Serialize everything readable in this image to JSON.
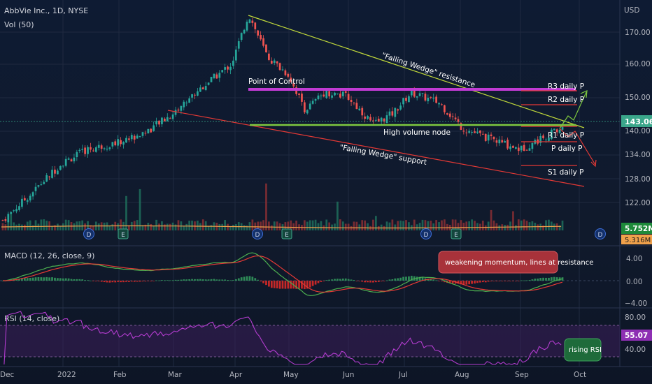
{
  "header": {
    "symbol_line": "AbbVie Inc., 1D, NYSE",
    "volume_line": "Vol (50)",
    "currency": "USD"
  },
  "price_axis": {
    "ticks": [
      "170.00",
      "160.00",
      "150.00",
      "143.06",
      "140.00",
      "134.00",
      "128.00",
      "122.00"
    ],
    "last_price": "143.06",
    "volume_last": "5.752M",
    "volume_ma": "5.316M"
  },
  "time_axis": {
    "ticks": [
      "Dec",
      "2022",
      "Feb",
      "Mar",
      "Apr",
      "May",
      "Jun",
      "Jul",
      "Aug",
      "Sep",
      "Oct"
    ]
  },
  "annotations": {
    "falling_wedge_resistance": "\"Falling Wedge\" resistance",
    "falling_wedge_support": "\"Falling Wedge\" support",
    "point_of_control": "Point of Control",
    "high_volume_node": "High volume node",
    "r3": "R3 daily P",
    "r2": "R2 daily P",
    "r1": "R1 daily P",
    "p": "P daily P",
    "s1": "S1 daily P"
  },
  "event_markers": [
    "D",
    "E",
    "D",
    "E",
    "D",
    "E",
    "D"
  ],
  "macd": {
    "title": "MACD (12, 26, close, 9)",
    "ticks": [
      "4.00",
      "0.00",
      "−4.00"
    ],
    "note": "weakening momentum, lines at resistance"
  },
  "rsi": {
    "title": "RSI (14, close)",
    "ticks": [
      "80.00",
      "40.00"
    ],
    "value": "55.07",
    "note": "rising RSI"
  },
  "colors": {
    "up": "#26a69a",
    "down": "#ef5350",
    "resistance": "#c0d83a",
    "support": "#e53935",
    "poc": "#c23bd4",
    "hvn": "#7ec93f",
    "rsi": "#b33ccf",
    "macd": "#4caf50",
    "signal": "#e53935",
    "price_tag": "#3aa68a"
  },
  "chart_data": {
    "type": "candlestick",
    "title": "AbbVie Inc., 1D, NYSE",
    "ylabel": "USD",
    "ylim": [
      116,
      178
    ],
    "x": [
      "Dec",
      "2022",
      "Feb",
      "Mar",
      "Apr",
      "May",
      "Jun",
      "Jul",
      "Aug",
      "Sep",
      "Oct"
    ],
    "close_path": [
      [
        "2021-12-01",
        117
      ],
      [
        "2021-12-15",
        124
      ],
      [
        "2022-01-01",
        133
      ],
      [
        "2022-01-15",
        137
      ],
      [
        "2022-02-01",
        139
      ],
      [
        "2022-02-15",
        142
      ],
      [
        "2022-03-01",
        147
      ],
      [
        "2022-03-15",
        154
      ],
      [
        "2022-04-01",
        161
      ],
      [
        "2022-04-10",
        175
      ],
      [
        "2022-04-20",
        163
      ],
      [
        "2022-05-01",
        158
      ],
      [
        "2022-05-10",
        148
      ],
      [
        "2022-05-20",
        153
      ],
      [
        "2022-06-01",
        152
      ],
      [
        "2022-06-15",
        144
      ],
      [
        "2022-06-25",
        147
      ],
      [
        "2022-07-05",
        153
      ],
      [
        "2022-07-20",
        150
      ],
      [
        "2022-08-01",
        143
      ],
      [
        "2022-08-15",
        140
      ],
      [
        "2022-09-01",
        137
      ],
      [
        "2022-09-15",
        141
      ],
      [
        "2022-09-23",
        143.06
      ]
    ],
    "levels": {
      "point_of_control": 153,
      "high_volume_node": 143,
      "R3": 153,
      "R2": 148,
      "R1": 140.5,
      "P": 137,
      "S1": 131
    },
    "macd_ylim": [
      -5,
      6
    ],
    "rsi_ylim": [
      20,
      90
    ],
    "rsi_last": 55.07
  }
}
